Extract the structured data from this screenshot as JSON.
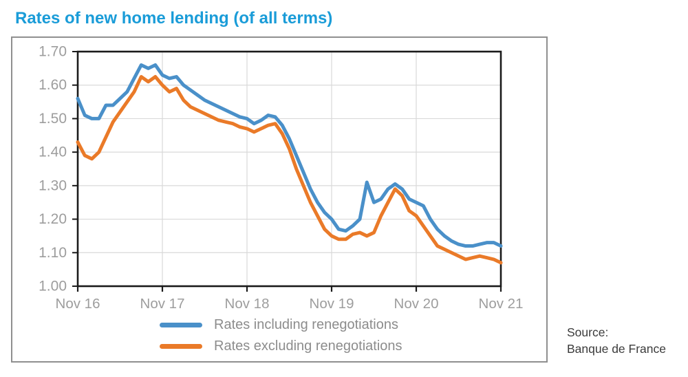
{
  "title": "Rates of new home lending (of all terms)",
  "source": {
    "line1": "Source:",
    "line2": "Banque de France"
  },
  "colors": {
    "title": "#1a9cd8",
    "axis_text": "#9d9d9d",
    "grid": "#d9d9d9",
    "plot_border": "#1a1a1a",
    "frame_border": "#8f8f8f",
    "legend_text": "#8c8c8c",
    "source_text": "#3b3b3b",
    "series_including": "#4a90c9",
    "series_excluding": "#ea7a28"
  },
  "chart_data": {
    "type": "line",
    "title": "Rates of new home lending (of all terms)",
    "xlabel": "",
    "ylabel": "",
    "x_unit": "monthly, Nov 2016 to Nov 2021",
    "x_tick_labels": [
      "Nov 16",
      "Nov 17",
      "Nov 18",
      "Nov 19",
      "Nov 20",
      "Nov 21"
    ],
    "x_tick_positions": [
      0,
      12,
      24,
      36,
      48,
      60
    ],
    "ylim": [
      1.0,
      1.7
    ],
    "y_ticks": [
      1.0,
      1.1,
      1.2,
      1.3,
      1.4,
      1.5,
      1.6,
      1.7
    ],
    "grid": true,
    "legend_position": "bottom",
    "series": [
      {
        "name": "Rates including renegotiations",
        "color": "#4a90c9",
        "values": [
          1.56,
          1.51,
          1.5,
          1.5,
          1.54,
          1.54,
          1.56,
          1.58,
          1.62,
          1.66,
          1.65,
          1.66,
          1.63,
          1.62,
          1.625,
          1.6,
          1.585,
          1.57,
          1.555,
          1.545,
          1.535,
          1.525,
          1.515,
          1.505,
          1.5,
          1.485,
          1.495,
          1.51,
          1.505,
          1.48,
          1.44,
          1.39,
          1.34,
          1.29,
          1.25,
          1.22,
          1.2,
          1.17,
          1.165,
          1.18,
          1.2,
          1.31,
          1.25,
          1.26,
          1.29,
          1.305,
          1.29,
          1.26,
          1.25,
          1.24,
          1.2,
          1.17,
          1.15,
          1.135,
          1.125,
          1.12,
          1.12,
          1.125,
          1.13,
          1.13,
          1.12
        ]
      },
      {
        "name": "Rates excluding renegotiations",
        "color": "#ea7a28",
        "values": [
          1.43,
          1.39,
          1.38,
          1.4,
          1.445,
          1.49,
          1.52,
          1.55,
          1.58,
          1.625,
          1.61,
          1.625,
          1.6,
          1.58,
          1.59,
          1.555,
          1.535,
          1.525,
          1.515,
          1.505,
          1.495,
          1.49,
          1.485,
          1.475,
          1.47,
          1.46,
          1.47,
          1.48,
          1.485,
          1.455,
          1.41,
          1.35,
          1.3,
          1.25,
          1.21,
          1.17,
          1.15,
          1.14,
          1.14,
          1.155,
          1.16,
          1.15,
          1.16,
          1.21,
          1.25,
          1.29,
          1.27,
          1.225,
          1.21,
          1.18,
          1.15,
          1.12,
          1.11,
          1.1,
          1.09,
          1.08,
          1.085,
          1.09,
          1.085,
          1.08,
          1.07
        ]
      }
    ]
  }
}
